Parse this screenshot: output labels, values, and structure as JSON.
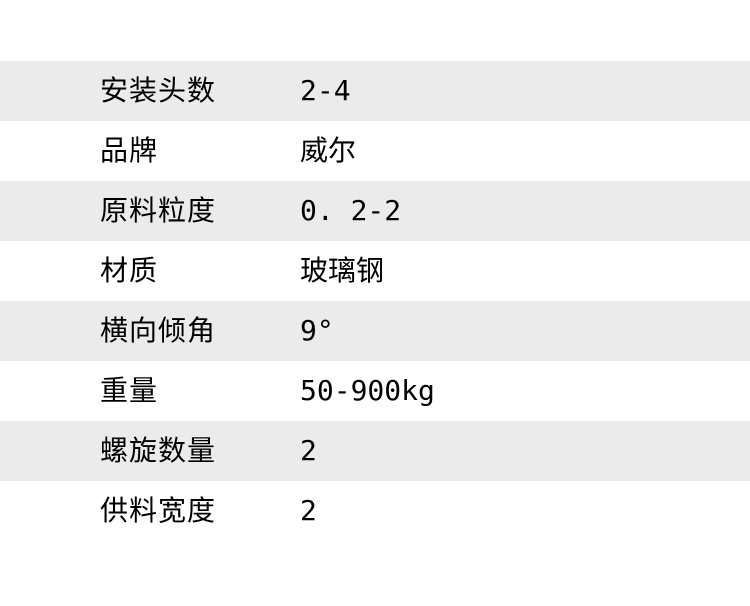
{
  "page": {
    "background": "#ffffff",
    "stripe_color": "#ebebeb",
    "text_color": "#000000"
  },
  "spec_table": {
    "rows": [
      {
        "label": "安装头数",
        "value": "2-4"
      },
      {
        "label": "品牌",
        "value": "威尔"
      },
      {
        "label": "原料粒度",
        "value": "0. 2-2"
      },
      {
        "label": "材质",
        "value": "玻璃钢"
      },
      {
        "label": "横向倾角",
        "value": "9°"
      },
      {
        "label": "重量",
        "value": "50-900kg"
      },
      {
        "label": "螺旋数量",
        "value": "2"
      },
      {
        "label": "供料宽度",
        "value": "2"
      }
    ]
  }
}
